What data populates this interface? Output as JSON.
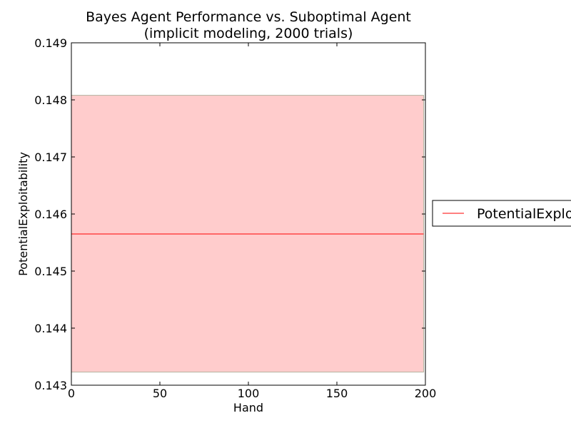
{
  "chart_data": {
    "type": "line",
    "title": "Bayes Agent Performance vs. Suboptimal Agent",
    "subtitle": "(implicit modeling, 2000 trials)",
    "xlabel": "Hand",
    "ylabel": "PotentialExploitability",
    "xlim": [
      0,
      200
    ],
    "ylim": [
      0.143,
      0.149
    ],
    "x_ticks": [
      0,
      50,
      100,
      150,
      200
    ],
    "x_tick_labels": [
      "0",
      "50",
      "100",
      "150",
      "200"
    ],
    "y_ticks": [
      0.143,
      0.144,
      0.145,
      0.146,
      0.147,
      0.148,
      0.149
    ],
    "y_tick_labels": [
      "0.143",
      "0.144",
      "0.145",
      "0.146",
      "0.147",
      "0.148",
      "0.149"
    ],
    "grid": false,
    "legend_position": "center-right outside",
    "series": [
      {
        "name": "PotentialExploitability",
        "color": "#ff0000",
        "x": [
          0,
          199
        ],
        "y": [
          0.14565,
          0.14565
        ],
        "band": {
          "lower": 0.14323,
          "upper": 0.14808,
          "color": "#ffcccc"
        }
      }
    ]
  }
}
